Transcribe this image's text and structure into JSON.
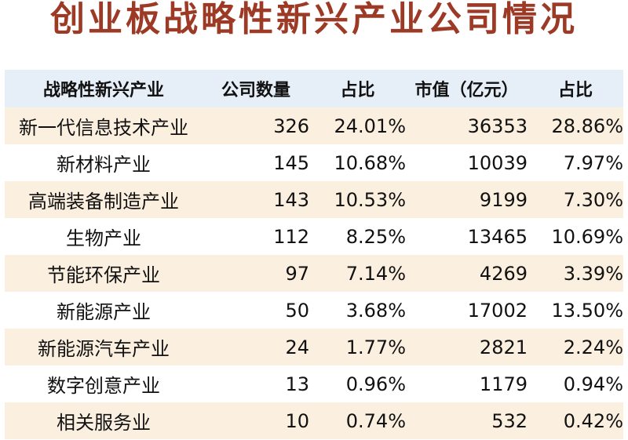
{
  "title": "创业板战略性新兴产业公司情况",
  "table": {
    "headers": [
      "战略性新兴产业",
      "公司数量",
      "占比",
      "市值（亿元）",
      "占比"
    ],
    "rows": [
      {
        "industry": "新一代信息技术产业",
        "count": "326",
        "count_share": "24.01%",
        "market_cap": "36353",
        "cap_share": "28.86%"
      },
      {
        "industry": "新材料产业",
        "count": "145",
        "count_share": "10.68%",
        "market_cap": "10039",
        "cap_share": "7.97%"
      },
      {
        "industry": "高端装备制造产业",
        "count": "143",
        "count_share": "10.53%",
        "market_cap": "9199",
        "cap_share": "7.30%"
      },
      {
        "industry": "生物产业",
        "count": "112",
        "count_share": "8.25%",
        "market_cap": "13465",
        "cap_share": "10.69%"
      },
      {
        "industry": "节能环保产业",
        "count": "97",
        "count_share": "7.14%",
        "market_cap": "4269",
        "cap_share": "3.39%"
      },
      {
        "industry": "新能源产业",
        "count": "50",
        "count_share": "3.68%",
        "market_cap": "17002",
        "cap_share": "13.50%"
      },
      {
        "industry": "新能源汽车产业",
        "count": "24",
        "count_share": "1.77%",
        "market_cap": "2821",
        "cap_share": "2.24%"
      },
      {
        "industry": "数字创意产业",
        "count": "13",
        "count_share": "0.96%",
        "market_cap": "1179",
        "cap_share": "0.94%"
      },
      {
        "industry": "相关服务业",
        "count": "10",
        "count_share": "0.74%",
        "market_cap": "532",
        "cap_share": "0.42%"
      }
    ]
  },
  "colors": {
    "title": "#9c3a26",
    "header_bg": "#e6eff8",
    "stripe_bg": "#fbefe0",
    "text": "#111111"
  }
}
